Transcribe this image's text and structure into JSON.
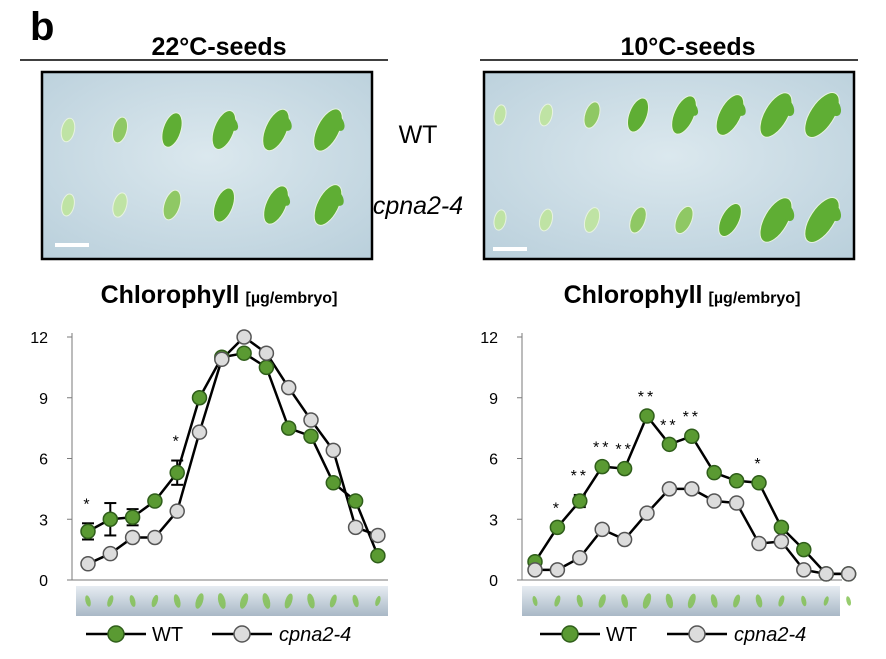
{
  "panel_label": "b",
  "panels": [
    {
      "header": "22°C-seeds"
    },
    {
      "header": "10°C-seeds"
    }
  ],
  "row_labels": {
    "wt": "WT",
    "mutant": "cpna2-4"
  },
  "colors": {
    "wt_fill": "#5a9a32",
    "wt_dark": "#2f5e1a",
    "mutant_fill": "#dcdcdc",
    "mutant_stroke": "#555555",
    "line": "#000000",
    "photo_bg": "#c9dbe4",
    "embryo": "#7dbf4a"
  },
  "chart_data": [
    {
      "type": "line",
      "title": "Chlorophyll",
      "unit": "[µg/embryo]",
      "ylim": [
        0,
        12
      ],
      "yticks": [
        "0",
        "3",
        "6",
        "9",
        "12"
      ],
      "x": [
        1,
        2,
        3,
        4,
        5,
        6,
        7,
        8,
        9,
        10,
        11,
        12,
        13,
        14
      ],
      "series": [
        {
          "name": "WT",
          "values": [
            2.4,
            3.0,
            3.1,
            3.9,
            5.3,
            9.0,
            11.0,
            11.2,
            10.5,
            7.5,
            7.1,
            4.8,
            3.9,
            1.2
          ],
          "errors": [
            0.4,
            0.8,
            0.4,
            0,
            0.6,
            0,
            0,
            0,
            0,
            0,
            0,
            0,
            0,
            0
          ]
        },
        {
          "name": "cpna2-4",
          "values": [
            0.8,
            1.3,
            2.1,
            2.1,
            3.4,
            7.3,
            10.9,
            12.0,
            11.2,
            9.5,
            7.9,
            6.4,
            2.6,
            2.2
          ],
          "errors": [
            0,
            0,
            0,
            0,
            0,
            0,
            0,
            0,
            0,
            0,
            0,
            0,
            0,
            0
          ]
        }
      ],
      "significance": [
        {
          "x": 1,
          "label": "*"
        },
        {
          "x": 5,
          "label": "*"
        }
      ]
    },
    {
      "type": "line",
      "title": "Chlorophyll",
      "unit": "[µg/embryo]",
      "ylim": [
        0,
        12
      ],
      "yticks": [
        "0",
        "3",
        "6",
        "9",
        "12"
      ],
      "x": [
        1,
        2,
        3,
        4,
        5,
        6,
        7,
        8,
        9,
        10,
        11,
        12,
        13,
        14,
        15
      ],
      "series": [
        {
          "name": "WT",
          "values": [
            0.9,
            2.6,
            3.9,
            5.6,
            5.5,
            8.1,
            6.7,
            7.1,
            5.3,
            4.9,
            4.8,
            2.6,
            1.5,
            0.3,
            0.3
          ],
          "errors": [
            0,
            0,
            0.3,
            0,
            0,
            0,
            0,
            0,
            0,
            0,
            0,
            0,
            0,
            0,
            0
          ]
        },
        {
          "name": "cpna2-4",
          "values": [
            0.5,
            0.5,
            1.1,
            2.5,
            2.0,
            3.3,
            4.5,
            4.5,
            3.9,
            3.8,
            1.8,
            1.9,
            0.5,
            0.3,
            0.3
          ],
          "errors": [
            0,
            0,
            0,
            0,
            0,
            0,
            0,
            0,
            0,
            0,
            0,
            0,
            0,
            0,
            0
          ]
        }
      ],
      "significance": [
        {
          "x": 2,
          "label": "*"
        },
        {
          "x": 3,
          "label": "**"
        },
        {
          "x": 4,
          "label": "**"
        },
        {
          "x": 5,
          "label": "**"
        },
        {
          "x": 6,
          "label": "**"
        },
        {
          "x": 7,
          "label": "**"
        },
        {
          "x": 8,
          "label": "**"
        },
        {
          "x": 11,
          "label": "*"
        }
      ]
    }
  ]
}
